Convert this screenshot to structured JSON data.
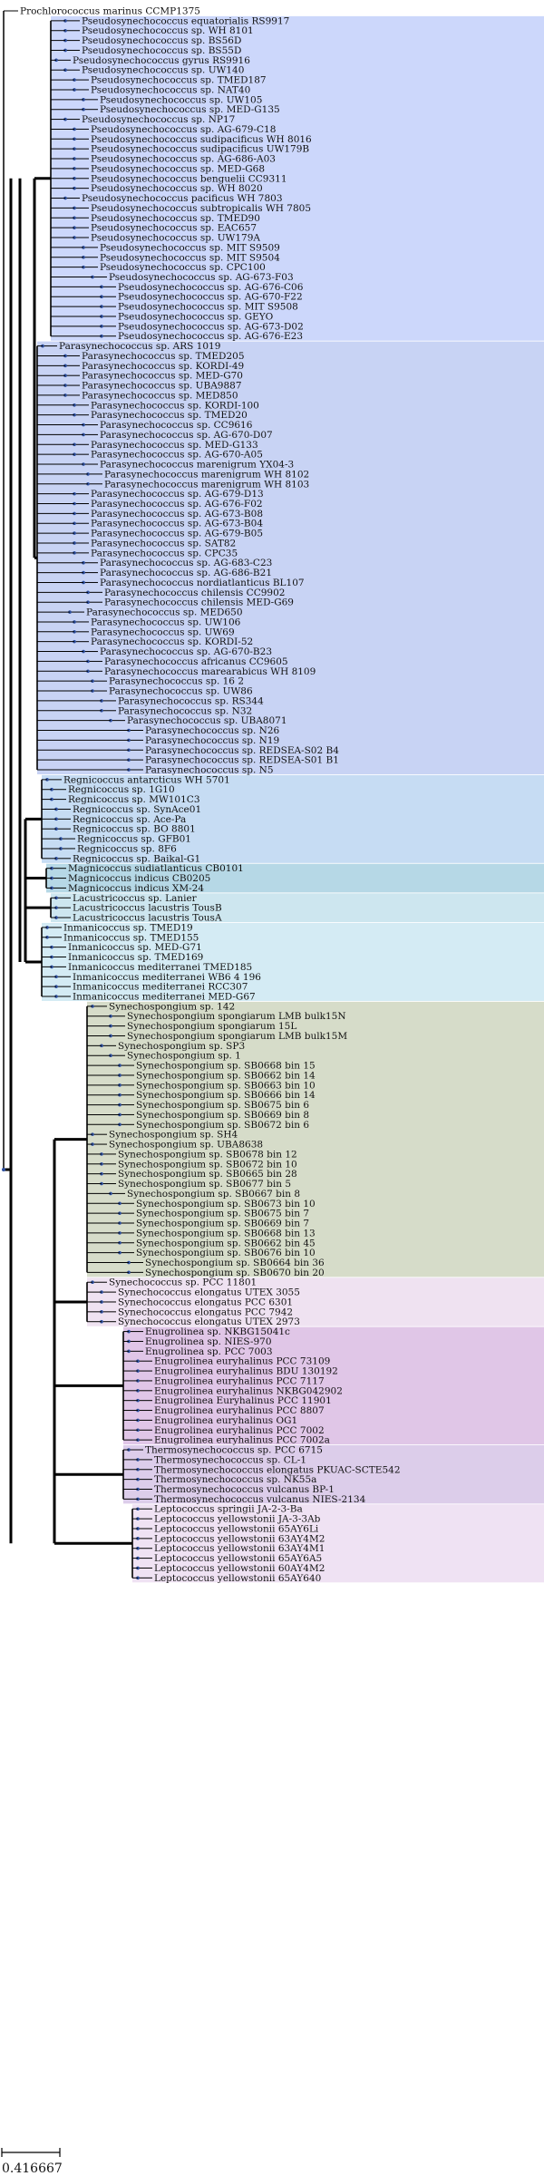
{
  "colors": {
    "branch": "#000000",
    "node": "#2e4f9e",
    "pseudo_band": "#ccd7fb",
    "para_band": "#c8d3f4",
    "regni_band": "#c6dcf3",
    "magni_band": "#b6d8e6",
    "lacu_band": "#cde6ef",
    "inman_band": "#d4ebf4",
    "synechospongium_band": "#d6dcc9",
    "synechococcus_band": "#efe2f1",
    "enugrolinea_band": "#e0c6e7",
    "thermo_band": "#dccdea",
    "lepto_band": "#efe2f3"
  },
  "scale_bar": {
    "label": "0.416667"
  },
  "groups": [
    {
      "name": "pseudo",
      "color": "#ccd7fb",
      "leaves": [
        "Pseudosynechococcus equatorialis RS9917",
        "Pseudosynechococcus sp. WH 8101",
        "Pseudosynechococcus sp. BS56D",
        "Pseudosynechococcus sp. BS55D",
        "Pseudosynechococcus gyrus RS9916",
        "Pseudosynechococcus sp. UW140",
        "Pseudosynechococcus sp. TMED187",
        "Pseudosynechococcus sp. NAT40",
        "Pseudosynechococcus sp. UW105",
        "Pseudosynechococcus sp. MED-G135",
        "Pseudosynechococcus sp. NP17",
        "Pseudosynechococcus sp. AG-679-C18",
        "Pseudosynechococcus sudipacificus WH 8016",
        "Pseudosynechococcus sudipacificus UW179B",
        "Pseudosynechococcus sp. AG-686-A03",
        "Pseudosynechococcus sp. MED-G68",
        "Pseudosynechococcus benguelii CC9311",
        "Pseudosynechococcus sp. WH 8020",
        "Pseudosynechococcus pacificus WH 7803",
        "Pseudosynechococcus subtropicalis WH 7805",
        "Pseudosynechococcus sp. TMED90",
        "Pseudosynechococcus sp. EAC657",
        "Pseudosynechococcus sp. UW179A",
        "Pseudosynechococcus sp. MIT S9509",
        "Pseudosynechococcus sp. MIT S9504",
        "Pseudosynechococcus sp. CPC100",
        "Pseudosynechococcus sp. AG-673-F03",
        "Pseudosynechococcus sp. AG-676-C06",
        "Pseudosynechococcus sp. AG-670-F22",
        "Pseudosynechococcus sp. MIT S9508",
        "Pseudosynechococcus sp. GEYO",
        "Pseudosynechococcus sp. AG-673-D02",
        "Pseudosynechococcus sp. AG-676-E23"
      ]
    },
    {
      "name": "para",
      "color": "#c8d3f4",
      "leaves": [
        "Parasynechococcus sp. ARS 1019",
        "Parasynechococcus sp. TMED205",
        "Parasynechococcus sp. KORDI-49",
        "Parasynechococcus sp. MED-G70",
        "Parasynechococcus sp. UBA9887",
        "Parasynechococcus sp. MED850",
        "Parasynechococcus sp. KORDI-100",
        "Parasynechococcus sp. TMED20",
        "Parasynechococcus sp. CC9616",
        "Parasynechococcus sp. AG-670-D07",
        "Parasynechococcus sp. MED-G133",
        "Parasynechococcus sp. AG-670-A05",
        "Parasynechococcus marenigrum YX04-3",
        "Parasynechococcus marenigrum WH 8102",
        "Parasynechococcus marenigrum WH 8103",
        "Parasynechococcus sp. AG-679-D13",
        "Parasynechococcus sp. AG-676-F02",
        "Parasynechococcus sp. AG-673-B08",
        "Parasynechococcus sp. AG-673-B04",
        "Parasynechococcus sp. AG-679-B05",
        "Parasynechococcus sp. SAT82",
        "Parasynechococcus sp. CPC35",
        "Parasynechococcus sp. AG-683-C23",
        "Parasynechococcus sp. AG-686-B21",
        "Parasynechococcus nordiatlanticus BL107",
        "Parasynechococcus chilensis CC9902",
        "Parasynechococcus chilensis MED-G69",
        "Parasynechococcus sp. MED650",
        "Parasynechococcus sp. UW106",
        "Parasynechococcus sp. UW69",
        "Parasynechococcus sp. KORDI-52",
        "Parasynechococcus sp. AG-670-B23",
        "Parasynechococcus africanus CC9605",
        "Parasynechococcus marearabicus WH 8109",
        "Parasynechococcus sp. 16 2",
        "Parasynechococcus sp. UW86",
        "Parasynechococcus sp. RS344",
        "Parasynechococcus sp. N32",
        "Parasynechococcus sp. UBA8071",
        "Parasynechococcus sp. N26",
        "Parasynechococcus sp. N19",
        "Parasynechococcus sp. REDSEA-S02 B4",
        "Parasynechococcus sp. REDSEA-S01 B1",
        "Parasynechococcus sp. N5"
      ]
    },
    {
      "name": "regni",
      "color": "#c6dcf3",
      "leaves": [
        "Regnicoccus antarcticus WH 5701",
        "Regnicoccus sp. 1G10",
        "Regnicoccus sp. MW101C3",
        "Regnicoccus sp. SynAce01",
        "Regnicoccus sp. Ace-Pa",
        "Regnicoccus sp. BO 8801",
        "Regnicoccus sp. GFB01",
        "Regnicoccus sp. 8F6",
        "Regnicoccus sp. Baikal-G1"
      ]
    },
    {
      "name": "magni",
      "color": "#b6d8e6",
      "leaves": [
        "Magnicoccus sudiatlanticus CB0101",
        "Magnicoccus indicus CB0205",
        "Magnicoccus indicus XM-24"
      ]
    },
    {
      "name": "lacu",
      "color": "#cde6ef",
      "leaves": [
        "Lacustricoccus sp. Lanier",
        "Lacustricoccus lacustris TousB",
        "Lacustricoccus lacustris TousA"
      ]
    },
    {
      "name": "inman",
      "color": "#d4ebf4",
      "leaves": [
        "Inmanicoccus sp. TMED19",
        "Inmanicoccus sp. TMED155",
        "Inmanicoccus sp. MED-G71",
        "Inmanicoccus sp. TMED169",
        "Inmanicoccus mediterranei TMED185",
        "Inmanicoccus mediterranei WB6 4 196",
        "Inmanicoccus mediterranei RCC307",
        "Inmanicoccus mediterranei MED-G67"
      ]
    },
    {
      "name": "synechospongium",
      "color": "#d6dcc9",
      "leaves": [
        "Synechospongium sp. 142",
        "Synechospongium spongiarum LMB bulk15N",
        "Synechospongium spongiarum 15L",
        "Synechospongium spongiarum LMB bulk15M",
        "Synechospongium sp. SP3",
        "Synechospongium sp. 1",
        "Synechospongium sp. SB0668 bin 15",
        "Synechospongium sp. SB0662 bin 14",
        "Synechospongium sp. SB0663 bin 10",
        "Synechospongium sp. SB0666 bin 14",
        "Synechospongium sp. SB0675 bin 6",
        "Synechospongium sp. SB0669 bin 8",
        "Synechospongium sp. SB0672 bin 6",
        "Synechospongium sp. SH4",
        "Synechospongium sp. UBA8638",
        "Synechospongium sp. SB0678 bin 12",
        "Synechospongium sp. SB0672 bin 10",
        "Synechospongium sp. SB0665 bin 28",
        "Synechospongium sp. SB0677 bin 5",
        "Synechospongium sp. SB0667 bin 8",
        "Synechospongium sp. SB0673 bin 10",
        "Synechospongium sp. SB0675 bin 7",
        "Synechospongium sp. SB0669 bin 7",
        "Synechospongium sp. SB0668 bin 13",
        "Synechospongium sp. SB0662 bin 45",
        "Synechospongium sp. SB0676 bin 10",
        "Synechospongium sp. SB0664 bin 36",
        "Synechospongium sp. SB0670 bin 20"
      ]
    },
    {
      "name": "synechococcus",
      "color": "#efe2f1",
      "leaves": [
        "Synechococcus sp. PCC 11801",
        "Synechococcus elongatus UTEX 3055",
        "Synechococcus elongatus PCC 6301",
        "Synechococcus elongatus PCC 7942",
        "Synechococcus elongatus UTEX 2973"
      ]
    },
    {
      "name": "enugrolinea",
      "color": "#e0c6e7",
      "leaves": [
        "Enugrolinea sp. NKBG15041c",
        "Enugrolinea sp. NIES-970",
        "Enugrolinea sp. PCC 7003",
        "Enugrolinea euryhalinus PCC 73109",
        "Enugrolinea euryhalinus BDU 130192",
        "Enugrolinea euryhalinus PCC 7117",
        "Enugrolinea euryhalinus NKBG042902",
        "Enugrolinea Euryhalinus PCC 11901",
        "Enugrolinea euryhalinus PCC 8807",
        "Enugrolinea euryhalinus OG1",
        "Enugrolinea euryhalinus PCC 7002",
        "Enugrolinea euryhalinus PCC 7002a"
      ]
    },
    {
      "name": "thermo",
      "color": "#dccdea",
      "leaves": [
        "Thermosynechococcus sp. PCC 6715",
        "Thermosynechococcus sp. CL-1",
        "Thermosynechococcus elongatus PKUAC-SCTE542",
        "Thermosynechococcus sp. NK55a",
        "Thermosynechococcus vulcanus BP-1",
        "Thermosynechococcus vulcanus NIES-2134"
      ]
    },
    {
      "name": "lepto",
      "color": "#efe2f3",
      "leaves": [
        "Leptococcus springii JA-2-3-Ba",
        "Leptococcus yellowstonii JA-3-3Ab",
        "Leptococcus yellowstonii 65AY6Li",
        "Leptococcus yellowstonii 63AY4M2",
        "Leptococcus yellowstonii 63AY4M1",
        "Leptococcus yellowstonii 65AY6A5",
        "Leptococcus yellowstonii 60AY4M2",
        "Leptococcus yellowstonii 65AY640"
      ]
    }
  ],
  "root_leaf": "Prochlorococcus marinus CCMP1375"
}
